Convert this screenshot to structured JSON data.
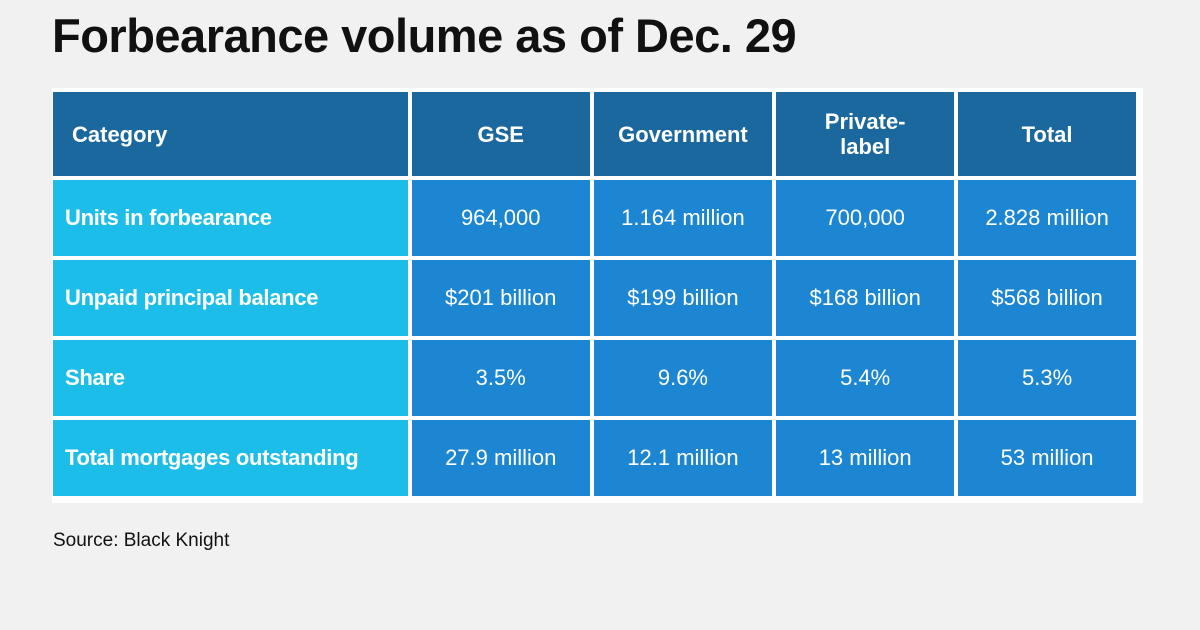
{
  "title": "Forbearance volume as of Dec. 29",
  "table": {
    "headers": [
      "Category",
      "GSE",
      "Government",
      "Private-\nlabel",
      "Total"
    ],
    "header_lines": {
      "private_label_line1": "Private-",
      "private_label_line2": "label"
    },
    "rows": [
      {
        "label": "Units in forbearance",
        "values": [
          "964,000",
          "1.164 million",
          "700,000",
          "2.828 million"
        ]
      },
      {
        "label": "Unpaid principal balance",
        "values": [
          "$201 billion",
          "$199 billion",
          "$168 billion",
          "$568 billion"
        ]
      },
      {
        "label": "Share",
        "values": [
          "3.5%",
          "9.6%",
          "5.4%",
          "5.3%"
        ]
      },
      {
        "label": "Total mortgages outstanding",
        "values": [
          "27.9 million",
          "12.1 million",
          "13 million",
          "53 million"
        ]
      }
    ]
  },
  "source": "Source: Black Knight",
  "colors": {
    "header_bg": "#1b689f",
    "label_bg": "#1dbde9",
    "cell_bg": "#1c86d2",
    "page_bg": "#f0f1f0"
  }
}
